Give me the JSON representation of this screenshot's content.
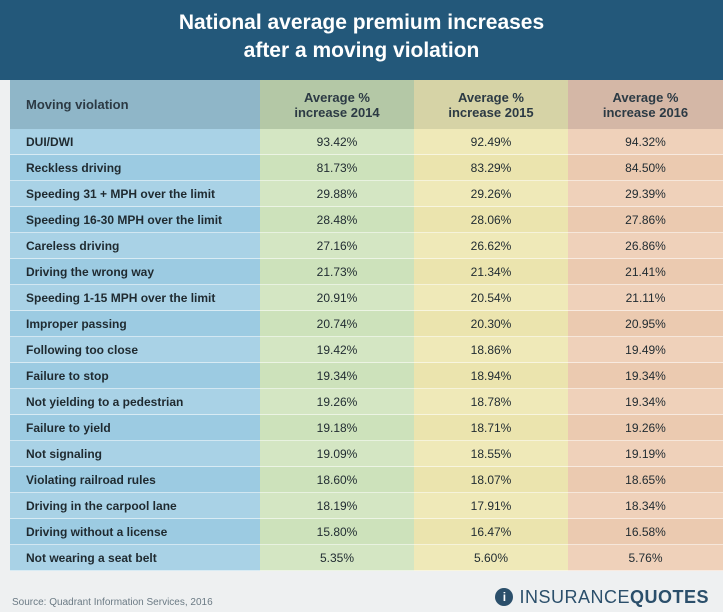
{
  "header": {
    "title_line1": "National average premium increases",
    "title_line2": "after a moving violation"
  },
  "chart_data": {
    "type": "table",
    "columns": [
      {
        "line1": "Moving violation",
        "line2": ""
      },
      {
        "line1": "Average %",
        "line2": "increase 2014"
      },
      {
        "line1": "Average %",
        "line2": "increase 2015"
      },
      {
        "line1": "Average %",
        "line2": "increase 2016"
      }
    ],
    "rows": [
      [
        "DUI/DWI",
        "93.42%",
        "92.49%",
        "94.32%"
      ],
      [
        "Reckless driving",
        "81.73%",
        "83.29%",
        "84.50%"
      ],
      [
        "Speeding 31 + MPH over the limit",
        "29.88%",
        "29.26%",
        "29.39%"
      ],
      [
        "Speeding 16-30 MPH over the limit",
        "28.48%",
        "28.06%",
        "27.86%"
      ],
      [
        "Careless driving",
        "27.16%",
        "26.62%",
        "26.86%"
      ],
      [
        "Driving the wrong way",
        "21.73%",
        "21.34%",
        "21.41%"
      ],
      [
        "Speeding 1-15 MPH over the limit",
        "20.91%",
        "20.54%",
        "21.11%"
      ],
      [
        "Improper passing",
        "20.74%",
        "20.30%",
        "20.95%"
      ],
      [
        "Following too close",
        "19.42%",
        "18.86%",
        "19.49%"
      ],
      [
        "Failure to stop",
        "19.34%",
        "18.94%",
        "19.34%"
      ],
      [
        "Not yielding to a pedestrian",
        "19.26%",
        "18.78%",
        "19.34%"
      ],
      [
        "Failure to yield",
        "19.18%",
        "18.71%",
        "19.26%"
      ],
      [
        "Not signaling",
        "19.09%",
        "18.55%",
        "19.19%"
      ],
      [
        "Violating railroad rules",
        "18.60%",
        "18.07%",
        "18.65%"
      ],
      [
        "Driving in the carpool lane",
        "18.19%",
        "17.91%",
        "18.34%"
      ],
      [
        "Driving without a license",
        "15.80%",
        "16.47%",
        "16.58%"
      ],
      [
        "Not wearing a seat belt",
        "5.35%",
        "5.60%",
        "5.76%"
      ]
    ]
  },
  "footer": {
    "source": "Source: Quadrant Information Services, 2016",
    "logo_mark": "i",
    "logo_word1": "INSURANCE",
    "logo_word2": "QUOTES"
  },
  "colors": {
    "header_bg": "#23587a",
    "col_violation": "#a9d2e6",
    "col_2014": "#d4e6c3",
    "col_2015": "#efe9b8",
    "col_2016": "#efd1ba"
  }
}
